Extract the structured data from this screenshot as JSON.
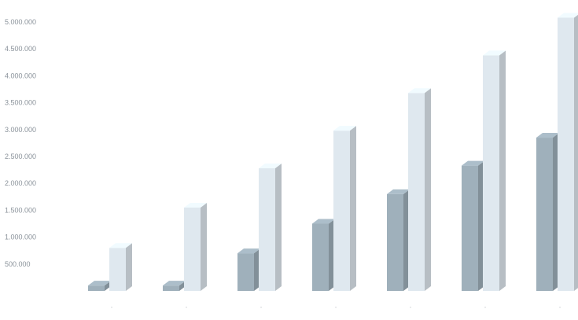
{
  "chart_data": {
    "type": "bar",
    "style": "3d-clustered",
    "categories": [
      "",
      "",
      "",
      "",
      "",
      "",
      ""
    ],
    "series": [
      {
        "color": "#9fb0bb",
        "values": [
          100000,
          100000,
          700000,
          1250000,
          1800000,
          2330000,
          2850000
        ]
      },
      {
        "color": "#dfe8ef",
        "values": [
          800000,
          1550000,
          2280000,
          2980000,
          3680000,
          4380000,
          5080000
        ]
      }
    ],
    "yticks": [
      "5.000.000",
      "4.500.000",
      "4.000.000",
      "3.500.000",
      "3.000.000",
      "2.500.000",
      "2.000.000",
      "1.500.000",
      "1.000.000",
      "500.000"
    ],
    "ylim": [
      0,
      5000000
    ],
    "grid": false,
    "legend": "none",
    "xtick_marks": [
      "'",
      "'",
      "'",
      "'",
      "'",
      "'",
      "'"
    ]
  }
}
